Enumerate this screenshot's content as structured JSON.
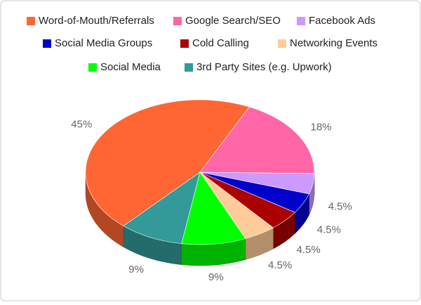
{
  "chart_data": {
    "type": "pie",
    "categories": [
      "Word-of-Mouth/Referrals",
      "Google Search/SEO",
      "Facebook Ads",
      "Social Media Groups",
      "Cold Calling",
      "Networking Events",
      "Social Media",
      "3rd Party Sites (e.g. Upwork)"
    ],
    "values": [
      45,
      18,
      4.5,
      4.5,
      4.5,
      4.5,
      9,
      9
    ],
    "value_labels": [
      "45%",
      "18%",
      "4.5%",
      "4.5%",
      "4.5%",
      "4.5%",
      "9%",
      "9%"
    ],
    "colors": [
      "#ff6633",
      "#ff66a8",
      "#cc99ff",
      "#0000cc",
      "#aa0000",
      "#ffcc99",
      "#00ff00",
      "#339999"
    ],
    "legend": "top",
    "three_d": true
  }
}
